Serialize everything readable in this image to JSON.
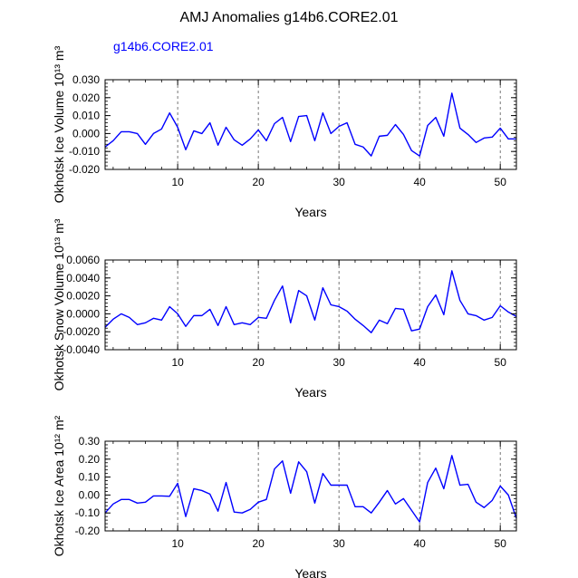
{
  "title": "AMJ Anomalies g14b6.CORE2.01",
  "legend_label": "g14b6.CORE2.01",
  "colors": {
    "series": "#0000ff",
    "axis": "#000000",
    "grid": "#555555"
  },
  "chart_data": [
    {
      "type": "line",
      "title": "AMJ Anomalies g14b6.CORE2.01",
      "xlabel": "Years",
      "ylabel": "Okhotsk Ice Volume 10¹³ m³",
      "ylim": [
        -0.02,
        0.03
      ],
      "xlim": [
        1,
        52
      ],
      "yticks": [
        -0.02,
        -0.01,
        0,
        0.01,
        0.02,
        0.03
      ],
      "ytick_labels": [
        "-0.020",
        "-0.010",
        "0.000",
        "0.010",
        "0.020",
        "0.030"
      ],
      "xticks": [
        10,
        20,
        30,
        40,
        50
      ],
      "xtick_labels": [
        "10",
        "20",
        "30",
        "40",
        "50"
      ],
      "vlines": [
        10,
        20,
        30,
        40,
        50
      ],
      "series": [
        {
          "name": "g14b6.CORE2.01",
          "x": [
            1,
            2,
            3,
            4,
            5,
            6,
            7,
            8,
            9,
            10,
            11,
            12,
            13,
            14,
            15,
            16,
            17,
            18,
            19,
            20,
            21,
            22,
            23,
            24,
            25,
            26,
            27,
            28,
            29,
            30,
            31,
            32,
            33,
            34,
            35,
            36,
            37,
            38,
            39,
            40,
            41,
            42,
            43,
            44,
            45,
            46,
            47,
            48,
            49,
            50,
            51,
            52
          ],
          "values": [
            -0.0075,
            -0.004,
            0.001,
            0.001,
            0.0,
            -0.006,
            0.0,
            0.0025,
            0.0115,
            0.0035,
            -0.009,
            0.0015,
            0.0,
            0.006,
            -0.0065,
            0.0035,
            -0.0035,
            -0.0065,
            -0.003,
            0.002,
            -0.004,
            0.0055,
            0.009,
            -0.0045,
            0.0095,
            0.01,
            -0.004,
            0.0115,
            0.0,
            0.004,
            0.006,
            -0.006,
            -0.0075,
            -0.0125,
            -0.0015,
            -0.001,
            0.005,
            -0.0005,
            -0.0095,
            -0.0125,
            0.0045,
            0.009,
            -0.0015,
            0.0225,
            0.003,
            -0.0005,
            -0.005,
            -0.0025,
            -0.002,
            0.003,
            -0.003,
            -0.003
          ]
        }
      ]
    },
    {
      "type": "line",
      "xlabel": "Years",
      "ylabel": "Okhotsk Snow Volume 10¹³ m³",
      "ylim": [
        -0.004,
        0.006
      ],
      "xlim": [
        1,
        52
      ],
      "yticks": [
        -0.004,
        -0.002,
        0,
        0.002,
        0.004,
        0.006
      ],
      "ytick_labels": [
        "-0.0040",
        "-0.0020",
        "0.0000",
        "0.0020",
        "0.0040",
        "0.0060"
      ],
      "xticks": [
        10,
        20,
        30,
        40,
        50
      ],
      "xtick_labels": [
        "10",
        "20",
        "30",
        "40",
        "50"
      ],
      "vlines": [
        10,
        20,
        30,
        40,
        50
      ],
      "series": [
        {
          "name": "g14b6.CORE2.01",
          "x": [
            1,
            2,
            3,
            4,
            5,
            6,
            7,
            8,
            9,
            10,
            11,
            12,
            13,
            14,
            15,
            16,
            17,
            18,
            19,
            20,
            21,
            22,
            23,
            24,
            25,
            26,
            27,
            28,
            29,
            30,
            31,
            32,
            33,
            34,
            35,
            36,
            37,
            38,
            39,
            40,
            41,
            42,
            43,
            44,
            45,
            46,
            47,
            48,
            49,
            50,
            51,
            52
          ],
          "values": [
            -0.0015,
            -0.0006,
            0.0,
            -0.0004,
            -0.0012,
            -0.001,
            -0.0005,
            -0.0007,
            0.0008,
            0.0,
            -0.0014,
            -0.0002,
            -0.0002,
            0.0005,
            -0.0013,
            0.0008,
            -0.0012,
            -0.001,
            -0.0012,
            -0.0004,
            -0.0005,
            0.0015,
            0.0031,
            -0.001,
            0.0026,
            0.002,
            -0.0007,
            0.0029,
            0.001,
            0.0008,
            0.0003,
            -0.0006,
            -0.0013,
            -0.0021,
            -0.0007,
            -0.0011,
            0.0006,
            0.0005,
            -0.0019,
            -0.0017,
            0.0008,
            0.0021,
            -0.0001,
            0.0048,
            0.0015,
            0.0,
            -0.0002,
            -0.0007,
            -0.0004,
            0.0009,
            0.0002,
            -0.0003
          ]
        }
      ]
    },
    {
      "type": "line",
      "xlabel": "Years",
      "ylabel": "Okhotsk Ice Area 10¹² m²",
      "ylim": [
        -0.2,
        0.3
      ],
      "xlim": [
        1,
        52
      ],
      "yticks": [
        -0.2,
        -0.1,
        0,
        0.1,
        0.2,
        0.3
      ],
      "ytick_labels": [
        "-0.20",
        "-0.10",
        "0.00",
        "0.10",
        "0.20",
        "0.30"
      ],
      "xticks": [
        10,
        20,
        30,
        40,
        50
      ],
      "xtick_labels": [
        "10",
        "20",
        "30",
        "40",
        "50"
      ],
      "vlines": [
        10,
        20,
        30,
        40,
        50
      ],
      "series": [
        {
          "name": "g14b6.CORE2.01",
          "x": [
            1,
            2,
            3,
            4,
            5,
            6,
            7,
            8,
            9,
            10,
            11,
            12,
            13,
            14,
            15,
            16,
            17,
            18,
            19,
            20,
            21,
            22,
            23,
            24,
            25,
            26,
            27,
            28,
            29,
            30,
            31,
            32,
            33,
            34,
            35,
            36,
            37,
            38,
            39,
            40,
            41,
            42,
            43,
            44,
            45,
            46,
            47,
            48,
            49,
            50,
            51,
            52
          ],
          "values": [
            -0.1,
            -0.05,
            -0.025,
            -0.025,
            -0.045,
            -0.04,
            -0.005,
            -0.005,
            -0.007,
            0.065,
            -0.12,
            0.035,
            0.025,
            0.005,
            -0.09,
            0.07,
            -0.095,
            -0.1,
            -0.08,
            -0.04,
            -0.025,
            0.145,
            0.19,
            0.01,
            0.185,
            0.13,
            -0.045,
            0.12,
            0.055,
            0.055,
            0.055,
            -0.065,
            -0.065,
            -0.1,
            -0.04,
            0.025,
            -0.05,
            -0.02,
            -0.085,
            -0.15,
            0.07,
            0.15,
            0.035,
            0.22,
            0.055,
            0.06,
            -0.04,
            -0.07,
            -0.03,
            0.05,
            0.0,
            -0.13
          ]
        }
      ]
    }
  ]
}
